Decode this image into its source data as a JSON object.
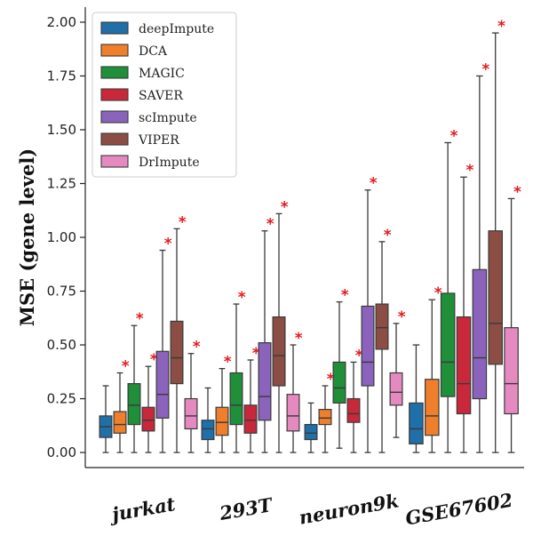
{
  "chart_data": {
    "type": "box",
    "ylabel": "MSE (gene level)",
    "xlabel": "",
    "ylim": [
      -0.07,
      2.07
    ],
    "yticks": [
      "0.00",
      "0.25",
      "0.50",
      "0.75",
      "1.00",
      "1.25",
      "1.50",
      "1.75",
      "2.00"
    ],
    "ytick_values": [
      0,
      0.25,
      0.5,
      0.75,
      1.0,
      1.25,
      1.5,
      1.75,
      2.0
    ],
    "categories": [
      "jurkat",
      "293T",
      "neuron9k",
      "GSE67602"
    ],
    "legend_position": "top-left",
    "significance_marker": "*",
    "series": [
      {
        "name": "deepImpute",
        "color": "#1f6fa8",
        "stats": [
          {
            "min": 0.0,
            "q1": 0.07,
            "median": 0.12,
            "q3": 0.17,
            "max": 0.31,
            "star": false
          },
          {
            "min": 0.0,
            "q1": 0.06,
            "median": 0.11,
            "q3": 0.15,
            "max": 0.3,
            "star": false
          },
          {
            "min": 0.0,
            "q1": 0.06,
            "median": 0.09,
            "q3": 0.13,
            "max": 0.23,
            "star": false
          },
          {
            "min": 0.0,
            "q1": 0.04,
            "median": 0.11,
            "q3": 0.23,
            "max": 0.5,
            "star": false
          }
        ]
      },
      {
        "name": "DCA",
        "color": "#f07f2b",
        "stats": [
          {
            "min": 0.0,
            "q1": 0.09,
            "median": 0.13,
            "q3": 0.19,
            "max": 0.37,
            "star": true
          },
          {
            "min": 0.0,
            "q1": 0.08,
            "median": 0.14,
            "q3": 0.21,
            "max": 0.39,
            "star": true
          },
          {
            "min": 0.0,
            "q1": 0.13,
            "median": 0.16,
            "q3": 0.2,
            "max": 0.31,
            "star": true
          },
          {
            "min": 0.0,
            "q1": 0.08,
            "median": 0.17,
            "q3": 0.34,
            "max": 0.71,
            "star": true
          }
        ]
      },
      {
        "name": "MAGIC",
        "color": "#1f8f3a",
        "stats": [
          {
            "min": 0.0,
            "q1": 0.13,
            "median": 0.22,
            "q3": 0.32,
            "max": 0.59,
            "star": true
          },
          {
            "min": 0.0,
            "q1": 0.13,
            "median": 0.22,
            "q3": 0.37,
            "max": 0.69,
            "star": true
          },
          {
            "min": 0.02,
            "q1": 0.23,
            "median": 0.3,
            "q3": 0.42,
            "max": 0.7,
            "star": true
          },
          {
            "min": 0.0,
            "q1": 0.26,
            "median": 0.42,
            "q3": 0.74,
            "max": 1.44,
            "star": true
          }
        ]
      },
      {
        "name": "SAVER",
        "color": "#c8283a",
        "stats": [
          {
            "min": 0.0,
            "q1": 0.1,
            "median": 0.15,
            "q3": 0.21,
            "max": 0.4,
            "star": true
          },
          {
            "min": 0.0,
            "q1": 0.09,
            "median": 0.15,
            "q3": 0.22,
            "max": 0.43,
            "star": true
          },
          {
            "min": 0.0,
            "q1": 0.14,
            "median": 0.18,
            "q3": 0.25,
            "max": 0.42,
            "star": true
          },
          {
            "min": 0.0,
            "q1": 0.18,
            "median": 0.32,
            "q3": 0.63,
            "max": 1.28,
            "star": true
          }
        ]
      },
      {
        "name": "scImpute",
        "color": "#8b63bc",
        "stats": [
          {
            "min": 0.0,
            "q1": 0.16,
            "median": 0.27,
            "q3": 0.47,
            "max": 0.94,
            "star": true
          },
          {
            "min": 0.0,
            "q1": 0.15,
            "median": 0.26,
            "q3": 0.51,
            "max": 1.03,
            "star": true
          },
          {
            "min": 0.0,
            "q1": 0.31,
            "median": 0.42,
            "q3": 0.68,
            "max": 1.22,
            "star": true
          },
          {
            "min": 0.0,
            "q1": 0.25,
            "median": 0.44,
            "q3": 0.85,
            "max": 1.75,
            "star": true
          }
        ]
      },
      {
        "name": "VIPER",
        "color": "#8c4d44",
        "stats": [
          {
            "min": 0.0,
            "q1": 0.32,
            "median": 0.44,
            "q3": 0.61,
            "max": 1.04,
            "star": true
          },
          {
            "min": 0.0,
            "q1": 0.31,
            "median": 0.45,
            "q3": 0.63,
            "max": 1.11,
            "star": true
          },
          {
            "min": 0.0,
            "q1": 0.48,
            "median": 0.58,
            "q3": 0.69,
            "max": 0.98,
            "star": true
          },
          {
            "min": 0.0,
            "q1": 0.41,
            "median": 0.6,
            "q3": 1.03,
            "max": 1.95,
            "star": true
          }
        ]
      },
      {
        "name": "DrImpute",
        "color": "#e58ac0",
        "stats": [
          {
            "min": 0.0,
            "q1": 0.11,
            "median": 0.17,
            "q3": 0.25,
            "max": 0.46,
            "star": true
          },
          {
            "min": 0.0,
            "q1": 0.1,
            "median": 0.17,
            "q3": 0.27,
            "max": 0.5,
            "star": true
          },
          {
            "min": 0.07,
            "q1": 0.22,
            "median": 0.28,
            "q3": 0.37,
            "max": 0.6,
            "star": true
          },
          {
            "min": 0.0,
            "q1": 0.18,
            "median": 0.32,
            "q3": 0.58,
            "max": 1.18,
            "star": true
          }
        ]
      }
    ]
  }
}
